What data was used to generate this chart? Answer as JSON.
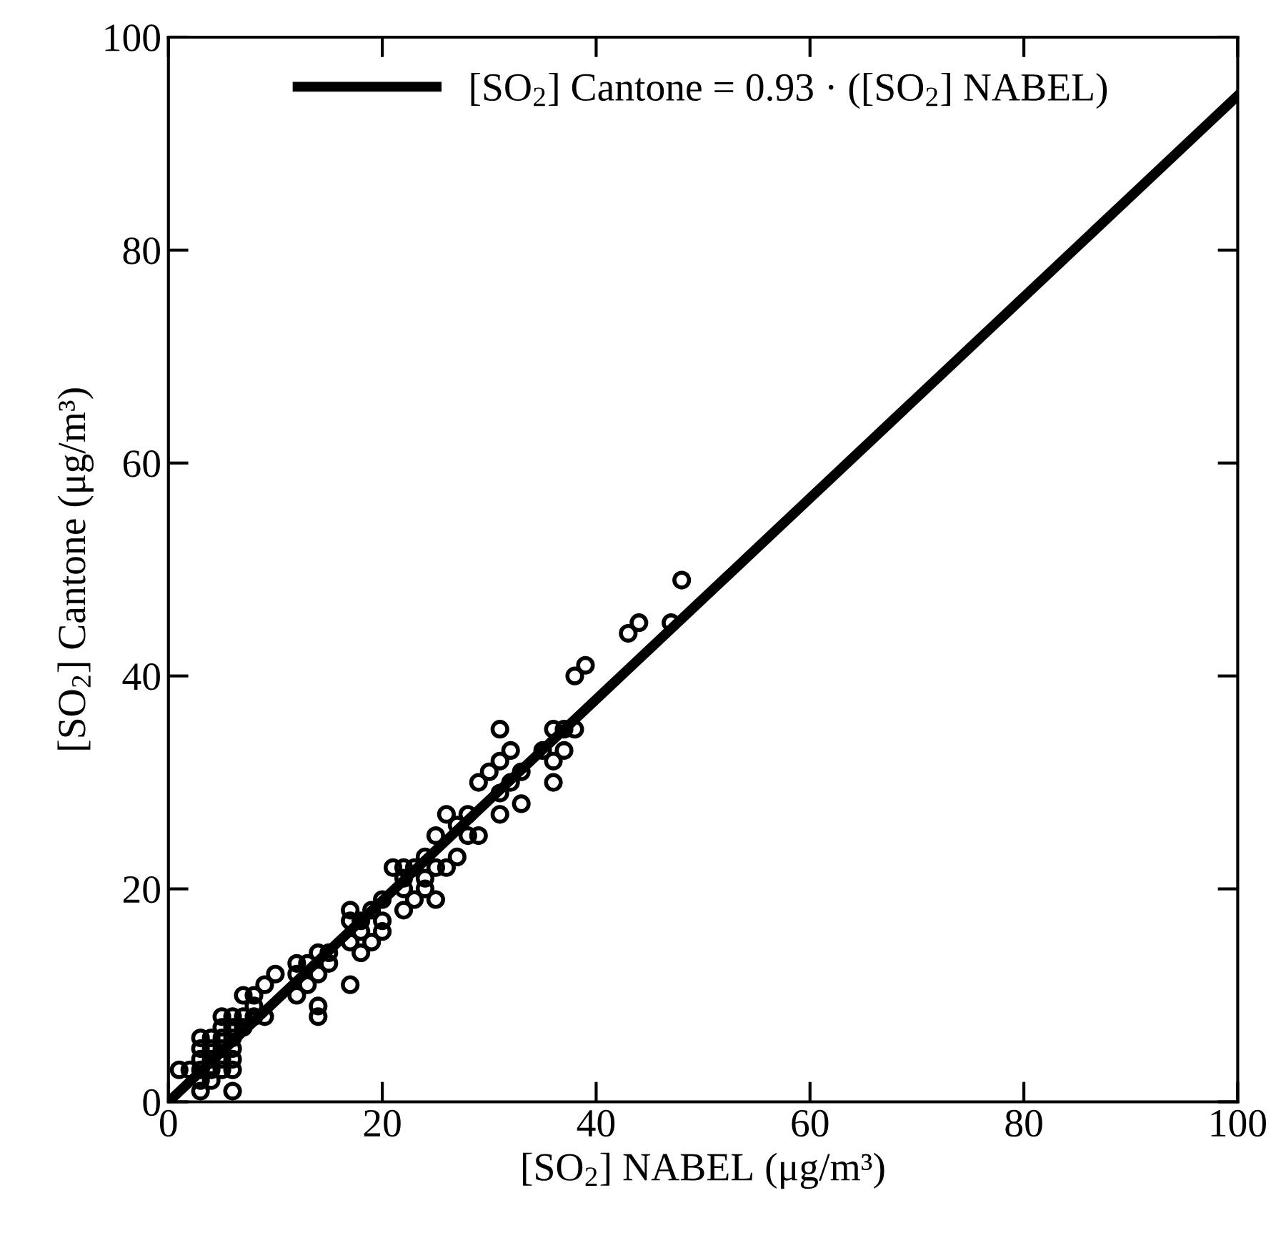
{
  "chart_data": {
    "type": "scatter",
    "xlabel": "[SO$_{2}$] NABEL (μg/m³)",
    "ylabel": "[SO$_{2}$] Cantone (μg/m³)",
    "xlim": [
      0,
      100
    ],
    "ylim": [
      0,
      100
    ],
    "xticks": [
      0,
      20,
      40,
      60,
      80,
      100
    ],
    "yticks": [
      0,
      20,
      40,
      60,
      80,
      100
    ],
    "grid": false,
    "legend": "top",
    "marker": "circle",
    "series": [
      {
        "color": "#000000",
        "x": [
          1,
          2,
          3,
          3,
          3,
          3,
          3,
          3,
          4,
          4,
          4,
          4,
          4,
          5,
          5,
          5,
          5,
          5,
          5,
          6,
          6,
          6,
          6,
          6,
          6,
          6,
          7,
          7,
          7,
          8,
          8,
          8,
          9,
          9,
          10,
          12,
          12,
          12,
          13,
          13,
          14,
          14,
          14,
          14,
          15,
          15,
          17,
          17,
          17,
          17,
          18,
          18,
          18,
          19,
          19,
          20,
          20,
          20,
          21,
          22,
          22,
          22,
          22,
          23,
          23,
          24,
          24,
          24,
          25,
          25,
          25,
          26,
          26,
          27,
          27,
          28,
          28,
          29,
          29,
          30,
          31,
          31,
          31,
          31,
          32,
          32,
          33,
          33,
          35,
          36,
          36,
          36,
          37,
          37,
          38,
          38,
          39,
          43,
          44,
          47,
          48
        ],
        "values": [
          3,
          3,
          1,
          2,
          3,
          4,
          5,
          6,
          2,
          3,
          4,
          5,
          6,
          3,
          4,
          5,
          6,
          7,
          8,
          1,
          3,
          4,
          5,
          6,
          7,
          8,
          7,
          8,
          10,
          8,
          9,
          10,
          8,
          11,
          12,
          10,
          12,
          13,
          11,
          13,
          8,
          9,
          12,
          14,
          13,
          14,
          11,
          15,
          17,
          18,
          14,
          16,
          17,
          15,
          18,
          16,
          17,
          19,
          22,
          18,
          20,
          21,
          22,
          19,
          22,
          20,
          21,
          23,
          19,
          22,
          25,
          22,
          27,
          23,
          26,
          25,
          27,
          25,
          30,
          31,
          27,
          29,
          32,
          35,
          30,
          33,
          28,
          31,
          33,
          30,
          32,
          35,
          33,
          35,
          35,
          40,
          41,
          44,
          45,
          45,
          49
        ]
      },
      {
        "type": "line",
        "name": "[SO$_{2}$] Cantone = 0.93 · ([SO$_{2}$] NABEL)",
        "color": "#000000",
        "line_style": "solid",
        "marker": "none",
        "x": [
          0,
          100
        ],
        "values": [
          0,
          94.5
        ]
      }
    ]
  }
}
